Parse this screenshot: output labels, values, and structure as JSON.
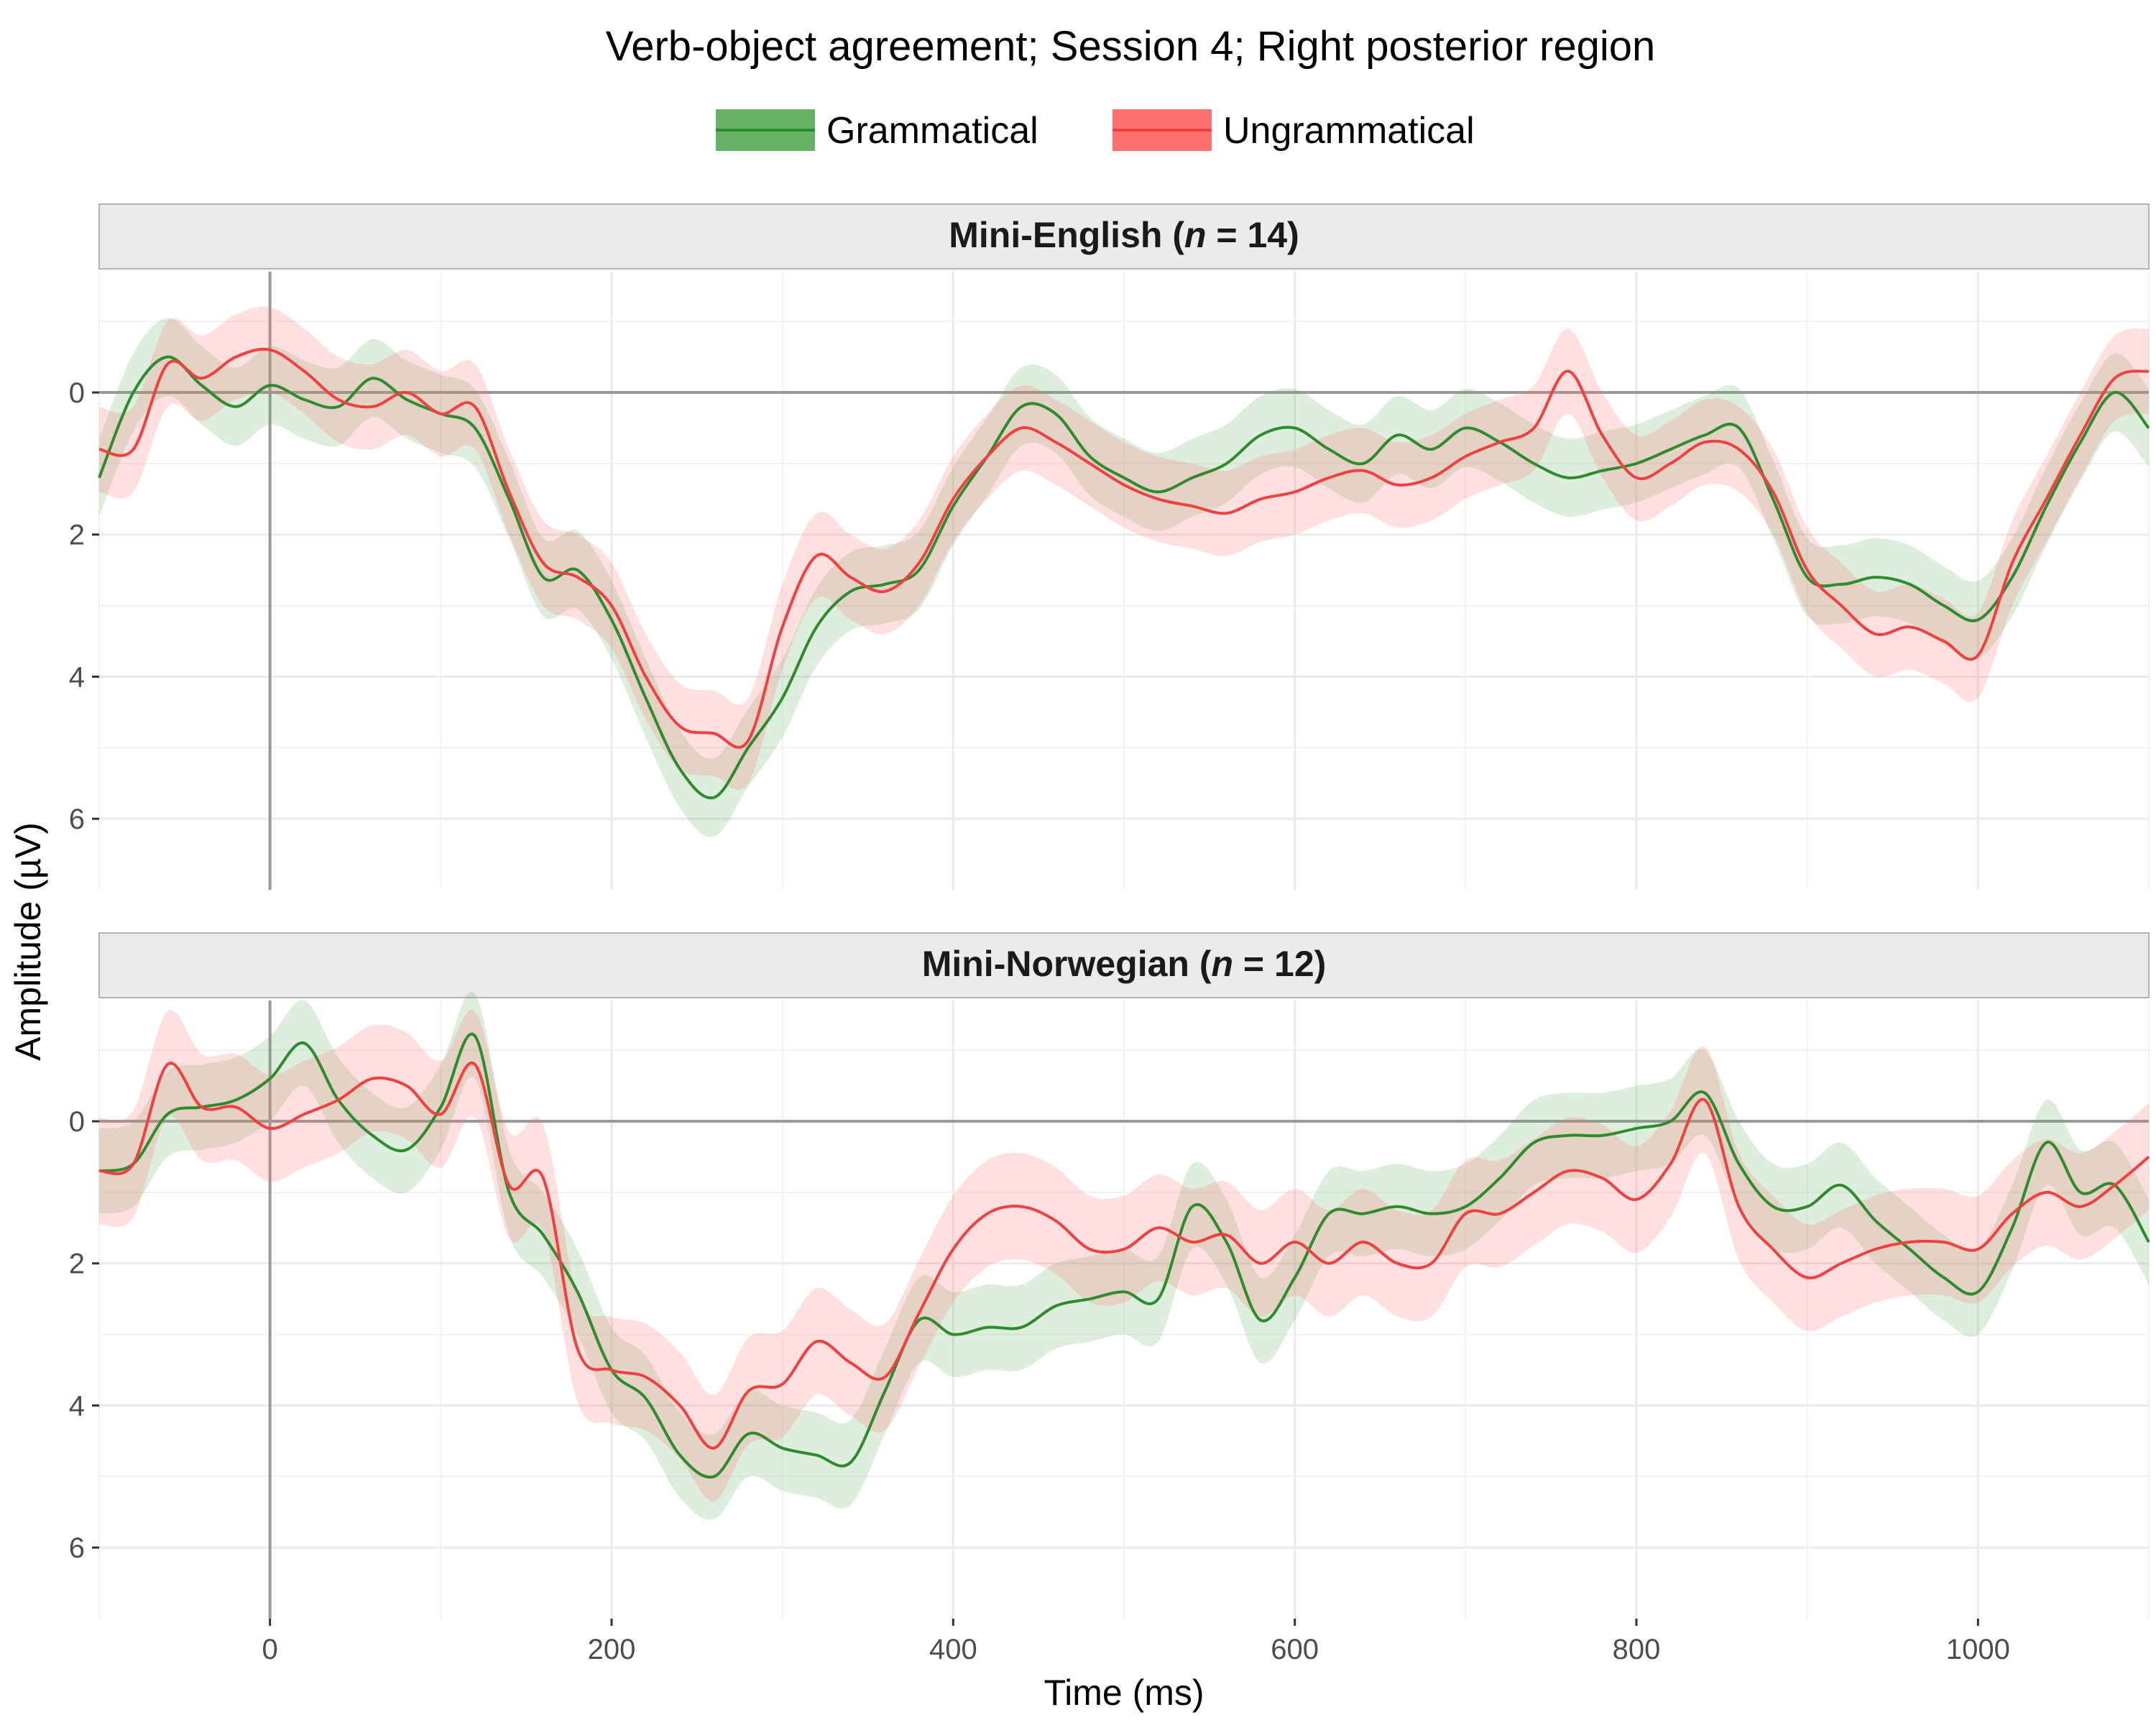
{
  "chart_data": {
    "type": "line",
    "title": "Verb-object agreement; Session 4; Right posterior region",
    "xlabel": "Time (ms)",
    "ylabel": "Amplitude (µV)",
    "xlim": [
      -100,
      1100
    ],
    "ylim": [
      7,
      -1.7
    ],
    "y_reversed": true,
    "x_ticks": [
      0,
      200,
      400,
      600,
      800,
      1000
    ],
    "x_tick_labels": [
      "0",
      "200",
      "400",
      "600",
      "800",
      "1000"
    ],
    "y_ticks": [
      0,
      2,
      4,
      6
    ],
    "y_tick_labels": [
      "0",
      "2",
      "4",
      "6"
    ],
    "grid": true,
    "legend_position": "top",
    "legend": [
      {
        "name": "Grammatical",
        "color": "#2e8b2e",
        "fill": "#66b266"
      },
      {
        "name": "Ungrammatical",
        "color": "#f04040",
        "fill": "#ff7070"
      }
    ],
    "reference_lines": {
      "x": 0,
      "y": 0
    },
    "x": [
      -100,
      -80,
      -60,
      -40,
      -20,
      0,
      20,
      40,
      60,
      80,
      100,
      120,
      140,
      160,
      180,
      200,
      220,
      240,
      260,
      280,
      300,
      320,
      340,
      360,
      380,
      400,
      420,
      440,
      460,
      480,
      500,
      520,
      540,
      560,
      580,
      600,
      620,
      640,
      660,
      680,
      700,
      720,
      740,
      760,
      780,
      800,
      820,
      840,
      860,
      880,
      900,
      920,
      940,
      960,
      980,
      1000,
      1020,
      1040,
      1060,
      1080,
      1100
    ],
    "panels": [
      {
        "label_prefix": "Mini-English (",
        "label_n": "n",
        "label_suffix": " = 14)",
        "series": [
          {
            "name": "Grammatical",
            "ci": 0.55,
            "values": [
              1.2,
              0.0,
              -0.5,
              -0.1,
              0.2,
              -0.1,
              0.1,
              0.2,
              -0.2,
              0.1,
              0.3,
              0.5,
              1.5,
              2.6,
              2.5,
              3.2,
              4.3,
              5.3,
              5.7,
              5.0,
              4.3,
              3.3,
              2.8,
              2.7,
              2.5,
              1.6,
              0.9,
              0.2,
              0.3,
              0.9,
              1.2,
              1.4,
              1.2,
              1.0,
              0.6,
              0.5,
              0.8,
              1.0,
              0.6,
              0.8,
              0.5,
              0.7,
              1.0,
              1.2,
              1.1,
              1.0,
              0.8,
              0.6,
              0.5,
              1.5,
              2.6,
              2.7,
              2.6,
              2.7,
              3.0,
              3.2,
              2.6,
              1.6,
              0.7,
              0.0,
              0.5
            ]
          },
          {
            "name": "Ungrammatical",
            "ci": 0.6,
            "values": [
              0.8,
              0.8,
              -0.4,
              -0.2,
              -0.5,
              -0.6,
              -0.3,
              0.1,
              0.2,
              0.0,
              0.3,
              0.2,
              1.4,
              2.4,
              2.6,
              3.0,
              4.0,
              4.7,
              4.8,
              4.9,
              3.3,
              2.3,
              2.6,
              2.8,
              2.4,
              1.5,
              0.9,
              0.5,
              0.7,
              1.0,
              1.3,
              1.5,
              1.6,
              1.7,
              1.5,
              1.4,
              1.2,
              1.1,
              1.3,
              1.2,
              0.9,
              0.7,
              0.5,
              -0.3,
              0.6,
              1.2,
              1.0,
              0.7,
              0.8,
              1.4,
              2.5,
              3.0,
              3.4,
              3.3,
              3.5,
              3.7,
              2.4,
              1.5,
              0.6,
              -0.2,
              -0.3
            ]
          }
        ]
      },
      {
        "label_prefix": "Mini-Norwegian (",
        "label_n": "n",
        "label_suffix": " = 12)",
        "series": [
          {
            "name": "Grammatical",
            "ci": 0.6,
            "values": [
              0.7,
              0.6,
              -0.1,
              -0.2,
              -0.3,
              -0.6,
              -1.1,
              -0.3,
              0.2,
              0.4,
              -0.2,
              -1.2,
              1.0,
              1.6,
              2.4,
              3.5,
              3.9,
              4.7,
              5.0,
              4.4,
              4.6,
              4.7,
              4.8,
              3.8,
              2.8,
              3.0,
              2.9,
              2.9,
              2.6,
              2.5,
              2.4,
              2.5,
              1.2,
              1.7,
              2.8,
              2.2,
              1.3,
              1.3,
              1.2,
              1.3,
              1.2,
              0.8,
              0.3,
              0.2,
              0.2,
              0.1,
              0.0,
              -0.4,
              0.6,
              1.2,
              1.2,
              0.9,
              1.4,
              1.8,
              2.2,
              2.4,
              1.5,
              0.3,
              1.0,
              0.9,
              1.7
            ]
          },
          {
            "name": "Ungrammatical",
            "ci": 0.75,
            "values": [
              0.7,
              0.6,
              -0.8,
              -0.2,
              -0.2,
              0.1,
              -0.1,
              -0.3,
              -0.6,
              -0.5,
              -0.1,
              -0.8,
              0.9,
              0.8,
              3.2,
              3.5,
              3.6,
              4.0,
              4.6,
              3.8,
              3.7,
              3.1,
              3.4,
              3.6,
              2.7,
              1.8,
              1.3,
              1.2,
              1.4,
              1.8,
              1.8,
              1.5,
              1.7,
              1.6,
              2.0,
              1.7,
              2.0,
              1.7,
              2.0,
              2.0,
              1.3,
              1.3,
              1.0,
              0.7,
              0.8,
              1.1,
              0.6,
              -0.3,
              1.2,
              1.8,
              2.2,
              2.0,
              1.8,
              1.7,
              1.7,
              1.8,
              1.3,
              1.0,
              1.2,
              0.9,
              0.5
            ]
          }
        ]
      }
    ]
  }
}
